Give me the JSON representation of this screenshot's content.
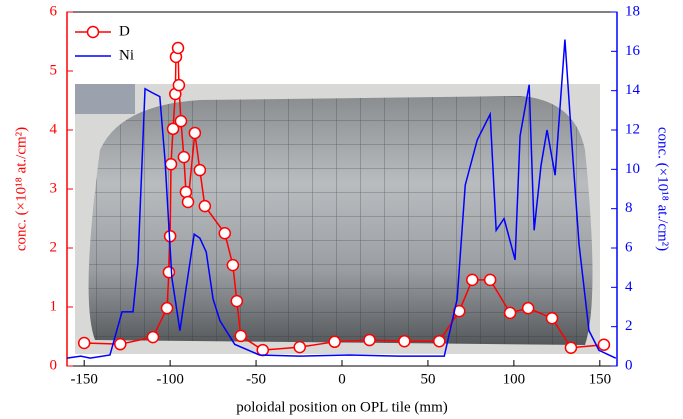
{
  "chart_data": {
    "type": "line",
    "xlabel": "poloidal position on OPL tile (mm)",
    "ylabel": "conc. (×10¹⁸ at./cm²)",
    "y2label": "conc. (×10¹⁸ at./cm²)",
    "xlim": [
      -160,
      160
    ],
    "xticks": [
      -150,
      -100,
      -50,
      0,
      50,
      100,
      150
    ],
    "ylim": [
      0,
      6
    ],
    "yticks": [
      0,
      1,
      2,
      3,
      4,
      5,
      6
    ],
    "ycolor": "#ff0000",
    "y2lim": [
      0,
      18
    ],
    "y2ticks": [
      0,
      2,
      4,
      6,
      8,
      10,
      12,
      14,
      16,
      18
    ],
    "y2color": "#0000ff",
    "grid": false,
    "legend": "upper left",
    "series": [
      {
        "name": "D",
        "color": "#ff0000",
        "marker": "circle",
        "x": [
          -150,
          -129,
          -110,
          -101.8,
          -100.7,
          -100,
          -99.5,
          -98.3,
          -97,
          -96.6,
          -95.4,
          -94.9,
          -93.7,
          -92,
          -90.8,
          -89.6,
          -85.6,
          -82.7,
          -79.8,
          -68.2,
          -63.5,
          -61.2,
          -58.9,
          -46.1,
          -24.6,
          -4.3,
          16,
          36.3,
          56.6,
          68.2,
          75.8,
          86.2,
          97.8,
          108.3,
          122.2,
          133.2,
          152.4
        ],
        "values": [
          0.39,
          0.37,
          0.49,
          0.98,
          1.59,
          2.2,
          3.42,
          4.02,
          4.61,
          5.24,
          5.39,
          4.76,
          4.15,
          3.54,
          2.95,
          2.78,
          3.95,
          3.32,
          2.71,
          2.25,
          1.71,
          1.1,
          0.51,
          0.27,
          0.32,
          0.41,
          0.44,
          0.42,
          0.42,
          0.93,
          1.46,
          1.46,
          0.9,
          0.98,
          0.81,
          0.31,
          0.36
        ]
      },
      {
        "name": "Ni",
        "color": "#0000ff",
        "marker": "none",
        "axis": "y2",
        "x": [
          -160,
          -152,
          -146.5,
          -135,
          -128,
          -121.6,
          -118.7,
          -114.6,
          -110.5,
          -106,
          -103,
          -99,
          -94.3,
          -90.8,
          -86,
          -82.7,
          -79,
          -75,
          -71,
          -62.4,
          -48,
          -24.6,
          4.4,
          33.4,
          59.5,
          67,
          71.7,
          78.7,
          86.2,
          89.7,
          94.3,
          100.7,
          103.6,
          108.9,
          111.8,
          115.8,
          119.3,
          124,
          129.7,
          134.4,
          137.9,
          143.7,
          149.5,
          159.3
        ],
        "values": [
          0.4,
          0.5,
          0.4,
          0.56,
          2.75,
          2.75,
          5.3,
          14.1,
          13.9,
          13.7,
          10.5,
          4.5,
          1.8,
          3.9,
          6.7,
          6.5,
          5.8,
          3.4,
          2.3,
          1.1,
          0.56,
          0.5,
          0.56,
          0.5,
          0.5,
          3.4,
          9.2,
          11.5,
          12.8,
          6.9,
          7.5,
          5.4,
          11.7,
          14.3,
          6.9,
          10.2,
          12,
          9.7,
          16.6,
          10.5,
          6.2,
          1.8,
          0.8,
          0.4
        ]
      }
    ]
  }
}
